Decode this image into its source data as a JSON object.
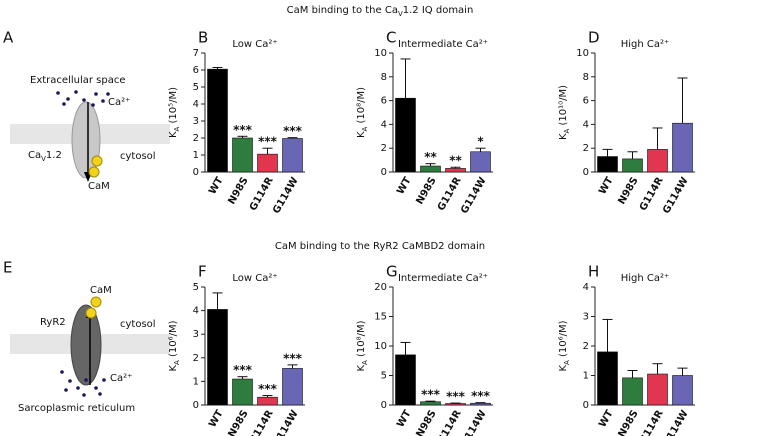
{
  "figure": {
    "top_title": [
      "CaM binding to the Ca",
      "V",
      "1.2 IQ domain"
    ],
    "bottom_title": "CaM binding to the RyR2 CaMBD2 domain",
    "diagram_top": {
      "panel": "A",
      "space": "Extracellular space",
      "ion": "Ca²⁺",
      "channel": [
        "Ca",
        "V",
        "1.2"
      ],
      "cytosol": "cytosol",
      "cam": "CaM"
    },
    "diagram_bottom": {
      "panel": "E",
      "cam": "CaM",
      "channel": "RyR2",
      "cytosol": "cytosol",
      "ion": "Ca²⁺",
      "space": "Sarcoplasmic reticulum"
    }
  },
  "chart_data": [
    {
      "type": "bar",
      "panel": "B",
      "title": "Low Ca²⁺",
      "ylabel": [
        "K",
        "A",
        " (10⁵/M)"
      ],
      "categories": [
        "WT",
        "N98S",
        "G114R",
        "G114W"
      ],
      "colors": [
        "#000000",
        "#2e7d3e",
        "#e23550",
        "#6a66b6"
      ],
      "values": [
        6.05,
        2.0,
        1.05,
        1.97
      ],
      "errors": [
        0.1,
        0.1,
        0.35,
        0.05
      ],
      "annotations": [
        null,
        "***",
        "***",
        "***"
      ],
      "ylim": [
        0,
        7
      ],
      "yticks": [
        0,
        1,
        2,
        3,
        4,
        5,
        6,
        7
      ]
    },
    {
      "type": "bar",
      "panel": "C",
      "title": "Intermediate Ca²⁺",
      "ylabel": [
        "K",
        "A",
        " (10⁸/M)"
      ],
      "categories": [
        "WT",
        "N98S",
        "G114R",
        "G114W"
      ],
      "colors": [
        "#000000",
        "#2e7d3e",
        "#e23550",
        "#6a66b6"
      ],
      "values": [
        6.2,
        0.5,
        0.3,
        1.7
      ],
      "errors": [
        3.3,
        0.2,
        0.1,
        0.3
      ],
      "annotations": [
        null,
        "**",
        "**",
        "*"
      ],
      "ylim": [
        0,
        10
      ],
      "yticks": [
        0,
        2,
        4,
        6,
        8,
        10
      ]
    },
    {
      "type": "bar",
      "panel": "D",
      "title": "High Ca²⁺",
      "ylabel": [
        "K",
        "A",
        " (10¹⁰/M)"
      ],
      "categories": [
        "WT",
        "N98S",
        "G114R",
        "G114W"
      ],
      "colors": [
        "#000000",
        "#2e7d3e",
        "#e23550",
        "#6a66b6"
      ],
      "values": [
        1.3,
        1.1,
        1.9,
        4.1
      ],
      "errors": [
        0.6,
        0.6,
        1.8,
        3.8
      ],
      "annotations": [
        null,
        null,
        null,
        null
      ],
      "ylim": [
        0,
        10
      ],
      "yticks": [
        0,
        2,
        4,
        6,
        8,
        10
      ]
    },
    {
      "type": "bar",
      "panel": "F",
      "title": "Low Ca²⁺",
      "ylabel": [
        "K",
        "A",
        " (10⁶/M)"
      ],
      "categories": [
        "WT",
        "N98S",
        "G114R",
        "G114W"
      ],
      "colors": [
        "#000000",
        "#2e7d3e",
        "#e23550",
        "#6a66b6"
      ],
      "values": [
        4.05,
        1.1,
        0.33,
        1.55
      ],
      "errors": [
        0.7,
        0.1,
        0.07,
        0.15
      ],
      "annotations": [
        null,
        "***",
        "***",
        "***"
      ],
      "ylim": [
        0,
        5
      ],
      "yticks": [
        0,
        1,
        2,
        3,
        4,
        5
      ]
    },
    {
      "type": "bar",
      "panel": "G",
      "title": "Intermediate Ca²⁺",
      "ylabel": [
        "K",
        "A",
        " (10⁸/M)"
      ],
      "categories": [
        "WT",
        "N98S",
        "G114R",
        "G114W"
      ],
      "colors": [
        "#000000",
        "#2e7d3e",
        "#e23550",
        "#6a66b6"
      ],
      "values": [
        8.5,
        0.55,
        0.25,
        0.3
      ],
      "errors": [
        2.1,
        0.1,
        0.08,
        0.1
      ],
      "annotations": [
        null,
        "***",
        "***",
        "***"
      ],
      "ylim": [
        0,
        20
      ],
      "yticks": [
        0,
        5,
        10,
        15,
        20
      ]
    },
    {
      "type": "bar",
      "panel": "H",
      "title": "High Ca²⁺",
      "ylabel": [
        "K",
        "A",
        " (10⁶/M)"
      ],
      "categories": [
        "WT",
        "N98S",
        "G114R",
        "G114W"
      ],
      "colors": [
        "#000000",
        "#2e7d3e",
        "#e23550",
        "#6a66b6"
      ],
      "values": [
        1.8,
        0.92,
        1.05,
        1.0
      ],
      "errors": [
        1.1,
        0.25,
        0.35,
        0.25
      ],
      "annotations": [
        null,
        null,
        null,
        null
      ],
      "ylim": [
        0,
        4
      ],
      "yticks": [
        0,
        1,
        2,
        3,
        4
      ]
    }
  ]
}
